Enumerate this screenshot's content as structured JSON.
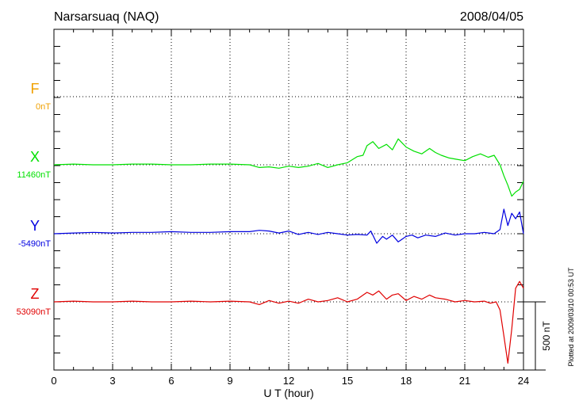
{
  "chart_data": {
    "type": "line",
    "title_left": "Narsarsuaq (NAQ)",
    "title_right": "2008/04/05",
    "xlabel": "U T (hour)",
    "xlim": [
      0,
      24
    ],
    "x_ticks": [
      "0",
      "3",
      "6",
      "9",
      "12",
      "15",
      "18",
      "21",
      "24"
    ],
    "grid": true,
    "scale_bar_label": "500 nT",
    "scale_bar_nT": 500,
    "plot_note": "Plotted at 2009/03/10 00:53 UT",
    "series": [
      {
        "name": "F",
        "baseline_label": "0nT",
        "color": "#f0a000",
        "x": [],
        "y": []
      },
      {
        "name": "X",
        "baseline_label": "11460nT",
        "color": "#00e000",
        "x": [
          0,
          1,
          2,
          3,
          4,
          5,
          6,
          7,
          8,
          9,
          10,
          10.5,
          11,
          11.5,
          12,
          12.5,
          13,
          13.5,
          14,
          14.5,
          15,
          15.5,
          15.8,
          16,
          16.3,
          16.6,
          17,
          17.3,
          17.6,
          18,
          18.4,
          18.8,
          19.2,
          19.5,
          19.8,
          20.2,
          20.6,
          21,
          21.4,
          21.8,
          22.2,
          22.5,
          22.8,
          23.0,
          23.2,
          23.4,
          23.6,
          23.8,
          24
        ],
        "y": [
          0,
          5,
          0,
          0,
          5,
          5,
          0,
          0,
          5,
          5,
          0,
          -20,
          -15,
          -25,
          -10,
          -20,
          -10,
          10,
          -20,
          0,
          15,
          60,
          70,
          140,
          170,
          120,
          150,
          110,
          190,
          130,
          100,
          80,
          120,
          90,
          70,
          50,
          40,
          30,
          60,
          80,
          55,
          70,
          0,
          -80,
          -150,
          -230,
          -200,
          -180,
          -120
        ]
      },
      {
        "name": "Y",
        "baseline_label": "-5490nT",
        "color": "#0000e0",
        "x": [
          0,
          1,
          2,
          3,
          4,
          5,
          6,
          7,
          8,
          9,
          10,
          10.5,
          11,
          11.5,
          12,
          12.5,
          13,
          13.5,
          14,
          14.5,
          15,
          15.5,
          16,
          16.2,
          16.5,
          16.8,
          17,
          17.3,
          17.6,
          18,
          18.3,
          18.6,
          19,
          19.5,
          20,
          20.5,
          21,
          21.5,
          22,
          22.5,
          22.8,
          23.0,
          23.2,
          23.4,
          23.6,
          23.8,
          24
        ],
        "y": [
          0,
          5,
          10,
          5,
          10,
          10,
          15,
          10,
          10,
          15,
          15,
          25,
          20,
          5,
          20,
          -5,
          10,
          -5,
          10,
          0,
          -10,
          -5,
          -10,
          20,
          -70,
          -20,
          -40,
          -10,
          -60,
          -20,
          -10,
          -30,
          -10,
          -20,
          5,
          -10,
          0,
          0,
          10,
          0,
          30,
          180,
          60,
          150,
          110,
          160,
          0
        ]
      },
      {
        "name": "Z",
        "baseline_label": "53090nT",
        "color": "#e00000",
        "x": [
          0,
          1,
          2,
          3,
          4,
          5,
          6,
          7,
          8,
          9,
          10,
          10.5,
          11,
          11.5,
          12,
          12.5,
          13,
          13.5,
          14,
          14.5,
          15,
          15.5,
          16,
          16.3,
          16.6,
          17,
          17.3,
          17.6,
          18,
          18.4,
          18.8,
          19.2,
          19.5,
          20,
          20.5,
          21,
          21.5,
          22,
          22.3,
          22.6,
          22.8,
          23.0,
          23.2,
          23.4,
          23.6,
          23.8,
          24
        ],
        "y": [
          0,
          5,
          0,
          0,
          5,
          0,
          0,
          5,
          0,
          5,
          0,
          -20,
          10,
          -10,
          5,
          -10,
          20,
          0,
          10,
          30,
          0,
          20,
          70,
          50,
          80,
          20,
          50,
          60,
          10,
          40,
          20,
          50,
          30,
          20,
          0,
          10,
          0,
          5,
          -10,
          0,
          -60,
          -250,
          -450,
          -200,
          100,
          150,
          100
        ]
      }
    ]
  }
}
